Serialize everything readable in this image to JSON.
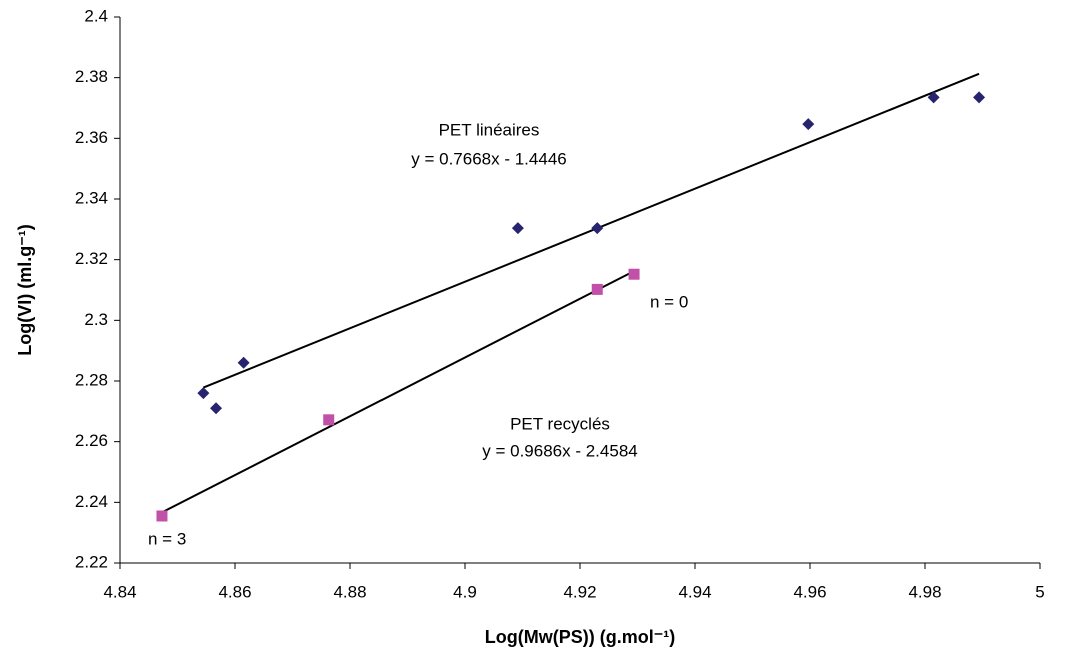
{
  "chart_data": {
    "type": "scatter",
    "x_label": "Log(Mw(PS)) (g.mol⁻¹)",
    "y_label": "Log(VI) (ml.g⁻¹)",
    "xlim": [
      4.84,
      5
    ],
    "xticks": [
      4.84,
      4.86,
      4.88,
      4.9,
      4.92,
      4.94,
      4.96,
      4.98,
      5
    ],
    "ylim": [
      2.22,
      2.4
    ],
    "yticks": [
      2.22,
      2.24,
      2.26,
      2.28,
      2.3,
      2.32,
      2.34,
      2.36,
      2.38,
      2.4
    ],
    "series": [
      {
        "marker": "diamond",
        "color": "#27236e",
        "x": [
          4.8545,
          4.8567,
          4.8615,
          4.9092,
          4.923,
          4.9597,
          4.9815,
          4.9894
        ],
        "values": [
          2.276,
          2.271,
          2.286,
          2.3304,
          2.3304,
          2.3647,
          2.3735,
          2.3735
        ],
        "trendline": {
          "slope": 0.7668,
          "intercept": -1.4446
        }
      },
      {
        "marker": "square",
        "color": "#c050a8",
        "x": [
          4.8473,
          4.8763,
          4.923,
          4.9294
        ],
        "values": [
          2.2355,
          2.2672,
          2.3102,
          2.3152
        ],
        "trendline": {
          "slope": 0.9686,
          "intercept": -2.4584
        }
      }
    ],
    "annotations": [
      "PET linéaires",
      "y = 0.7668x - 1.4446",
      "PET recyclés",
      "y = 0.9686x - 2.4584",
      "n = 0",
      "n = 3"
    ]
  }
}
